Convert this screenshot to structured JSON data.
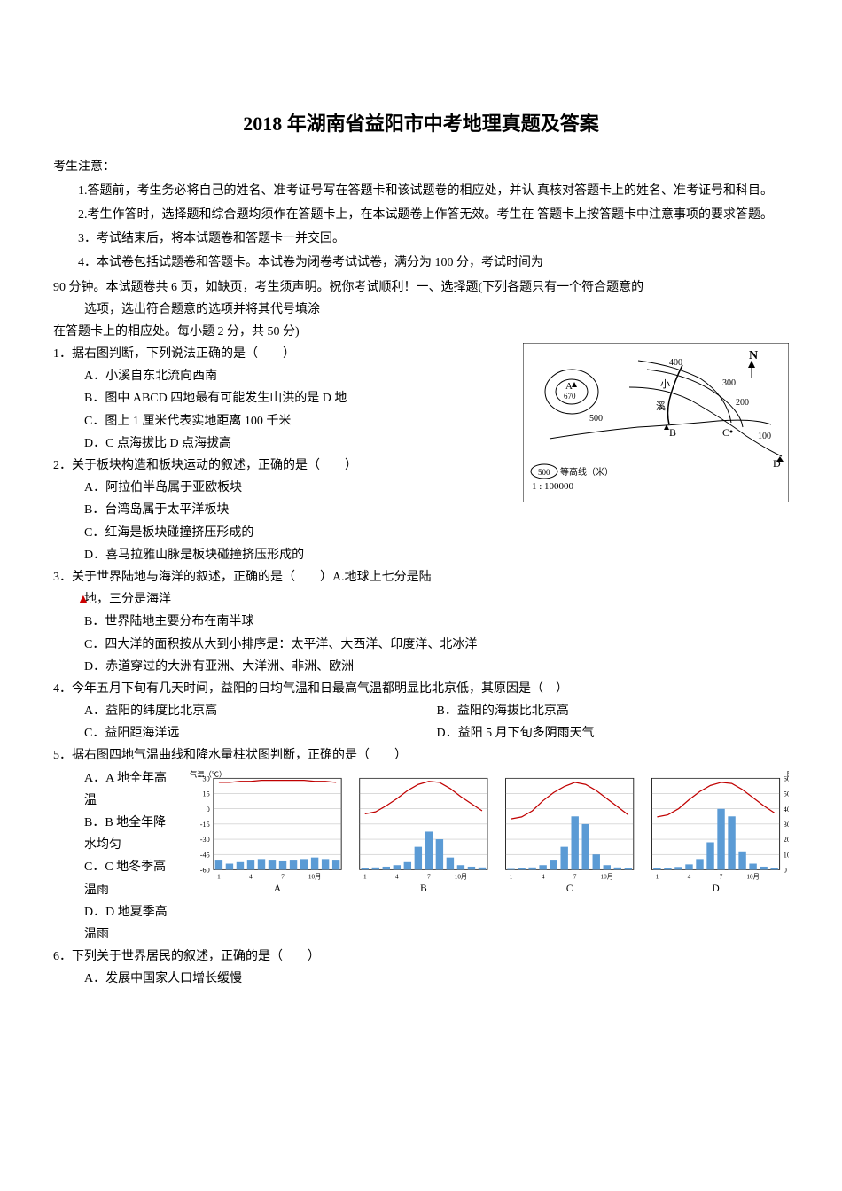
{
  "title": "2018 年湖南省益阳市中考地理真题及答案",
  "notice_label": "考生注意：",
  "instructions": [
    "1.答题前，考生务必将自己的姓名、准考证号写在答题卡和该试题卷的相应处，并认  真核对答题卡上的姓名、准考证号和科目。",
    "2.考生作答时，选择题和综合题均须作在答题卡上，在本试题卷上作答无效。考生在  答题卡上按答题卡中注意事项的要求答题。",
    "3．考试结束后，将本试题卷和答题卡一并交回。",
    "4．本试卷包括试题卷和答题卡。本试卷为闭卷考试试卷，满分为  100  分，考试时间为"
  ],
  "instruction_continued": "90 分钟。本试题卷共 6 页，如缺页，考生须声明。祝你考试顺利！一、选择题(下列各题只有一个符合题意的",
  "instruction_continued2": "选项，选出符合题意的选项并将其代号填涂",
  "instruction_continued3": "在答题卡上的相应处。每小题 2 分，共 50 分)",
  "q1": {
    "text": "1．据右图判断，下列说法正确的是（　　）",
    "options": {
      "A": "A．小溪自东北流向西南",
      "B": "B．图中 ABCD 四地最有可能发生山洪的是 D 地",
      "C": "C．图上 1 厘米代表实地距离 100 千米",
      "D": "D．C 点海拔比 D 点海拔高"
    }
  },
  "q2": {
    "text": "2．关于板块构造和板块运动的叙述，正确的是（　　）",
    "options": {
      "A": "A．阿拉伯半岛属于亚欧板块",
      "B": "B．台湾岛属于太平洋板块",
      "C": "C．红海是板块碰撞挤压形成的",
      "D": "D．喜马拉雅山脉是板块碰撞挤压形成的"
    }
  },
  "q3": {
    "text": "3．关于世界陆地与海洋的叙述，正确的是（　　）A.地球上七分是陆",
    "text2": "地，三分是海洋",
    "options": {
      "B": "B．世界陆地主要分布在南半球",
      "C": "C．四大洋的面积按从大到小排序是：太平洋、大西洋、印度洋、北冰洋",
      "D": "D．赤道穿过的大洲有亚洲、大洋洲、非洲、欧洲"
    }
  },
  "q4": {
    "text": "4．今年五月下旬有几天时间，益阳的日均气温和日最高气温都明显比北京低，其原因是（　）",
    "options": {
      "A": "A．益阳的纬度比北京高",
      "B": "B．益阳的海拔比北京高",
      "C": "C．益阳距海洋远",
      "D": "D．益阳 5 月下旬多阴雨天气"
    }
  },
  "q5": {
    "text": "5．据右图四地气温曲线和降水量柱状图判断，正确的是（　　）",
    "options": {
      "A": "A．A 地全年高温",
      "B": "B．B 地全年降水均匀",
      "C": "C．C 地冬季高温雨",
      "D": "D．D 地夏季高温雨"
    }
  },
  "q6": {
    "text": "6．下列关于世界居民的叙述，正确的是（　　）",
    "options": {
      "A": "A．发展中国家人口增长缓慢"
    }
  },
  "figure1": {
    "scale_label": "等高线（米）",
    "scale_value": "500",
    "scale_ratio": "1 : 100000",
    "point_A": "A",
    "point_A_value": "670",
    "point_B": "B",
    "point_C": "C",
    "point_D": "D",
    "north": "N",
    "contour_values": [
      "400",
      "300",
      "200",
      "100",
      "500"
    ],
    "colors": {
      "line": "#000000",
      "bg": "#ffffff"
    }
  },
  "figure2": {
    "temp_label": "气温（℃）",
    "precip_label": "降水量（mm）",
    "x_months": [
      "1",
      "4",
      "7",
      "10月"
    ],
    "y_temp": [
      30,
      15,
      0,
      -15,
      -30,
      -45,
      -60
    ],
    "y_precip": [
      600,
      500,
      400,
      300,
      200,
      100,
      0
    ],
    "charts": [
      "A",
      "B",
      "C",
      "D"
    ],
    "chart_A": {
      "temp_values": [
        26,
        26,
        27,
        27,
        28,
        28,
        28,
        28,
        28,
        27,
        27,
        26
      ],
      "precip_values": [
        60,
        40,
        50,
        60,
        70,
        60,
        55,
        60,
        70,
        80,
        70,
        60
      ]
    },
    "chart_B": {
      "temp_values": [
        -5,
        -3,
        3,
        10,
        18,
        24,
        27,
        26,
        20,
        12,
        5,
        -2
      ],
      "precip_values": [
        10,
        15,
        20,
        30,
        50,
        150,
        250,
        200,
        80,
        30,
        20,
        15
      ]
    },
    "chart_C": {
      "temp_values": [
        -10,
        -8,
        -2,
        8,
        16,
        22,
        26,
        24,
        18,
        10,
        2,
        -6
      ],
      "precip_values": [
        5,
        10,
        15,
        30,
        60,
        150,
        350,
        300,
        100,
        30,
        15,
        8
      ]
    },
    "chart_D": {
      "temp_values": [
        -8,
        -6,
        0,
        9,
        17,
        23,
        26,
        25,
        19,
        11,
        3,
        -4
      ],
      "precip_values": [
        10,
        12,
        18,
        35,
        70,
        180,
        400,
        350,
        120,
        40,
        20,
        12
      ]
    },
    "colors": {
      "bar": "#5b9bd5",
      "line": "#c00000",
      "grid": "#888888",
      "bg": "#ffffff",
      "border": "#000000"
    }
  }
}
